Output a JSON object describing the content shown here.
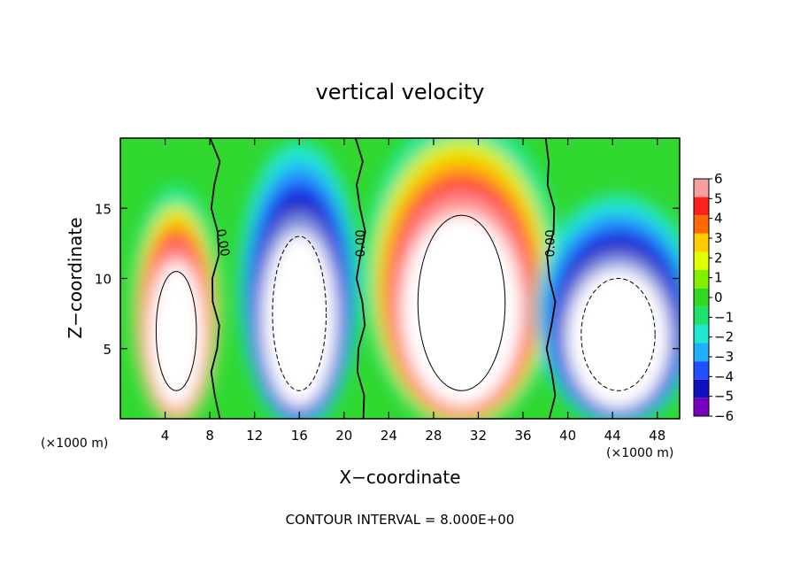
{
  "chart_data": {
    "type": "heatmap",
    "title": "vertical velocity",
    "xlabel": "X−coordinate",
    "ylabel": "Z−coordinate",
    "x_unit": "(×1000 m)",
    "y_unit": "(×1000 m)",
    "xlim": [
      0,
      50
    ],
    "ylim": [
      0,
      20
    ],
    "x_ticks": [
      4,
      8,
      12,
      16,
      20,
      24,
      28,
      32,
      36,
      40,
      44,
      48
    ],
    "y_ticks": [
      5,
      10,
      15
    ],
    "x_tick_labels": [
      "4",
      "8",
      "12",
      "16",
      "20",
      "24",
      "28",
      "32",
      "36",
      "40",
      "44",
      "48"
    ],
    "y_tick_labels": [
      "5",
      "10",
      "15"
    ],
    "colorbar": {
      "min": -6,
      "max": 6,
      "labels": [
        "6",
        "5",
        "4",
        "3",
        "2",
        "1",
        "0",
        "−1",
        "−2",
        "−3",
        "−4",
        "−5",
        "−6"
      ],
      "values": [
        6,
        5,
        4,
        3,
        2,
        1,
        0,
        -1,
        -2,
        -3,
        -4,
        -5,
        -6
      ],
      "colors": [
        "#f4a0a0",
        "#ff2020",
        "#ff6a00",
        "#ffcc00",
        "#e0ff00",
        "#80f000",
        "#30d820",
        "#20e070",
        "#20e8d0",
        "#20b0ff",
        "#2050ff",
        "#1010c0",
        "#7a00c0"
      ]
    },
    "contour_interval_text": "CONTOUR INTERVAL = 8.000E+00",
    "zero_contour_label": "0.00",
    "features": [
      {
        "kind": "updraft",
        "x_center": 5,
        "z_center": 7,
        "x_width": 6,
        "z_top": 13
      },
      {
        "kind": "downdraft",
        "x_center": 16,
        "z_center": 8,
        "x_width": 8,
        "z_top": 15.5
      },
      {
        "kind": "updraft",
        "x_center": 30.5,
        "z_center": 9,
        "x_width": 13,
        "z_top": 17
      },
      {
        "kind": "downdraft",
        "x_center": 44.5,
        "z_center": 7,
        "x_width": 11,
        "z_top": 12.5
      }
    ],
    "zero_contours_x": [
      8.5,
      21.5,
      38.5
    ]
  }
}
